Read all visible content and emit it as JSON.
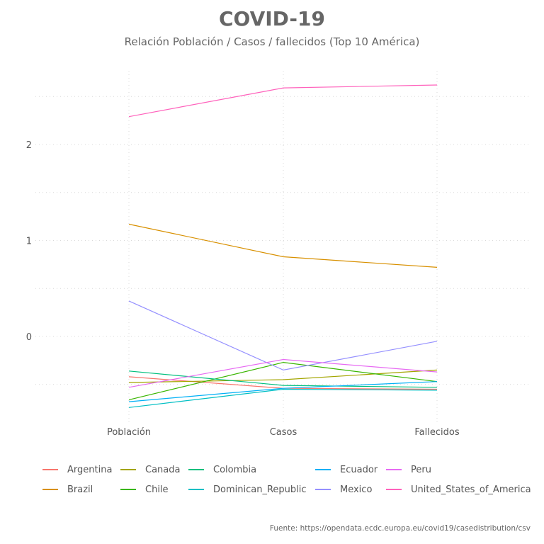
{
  "title": "COVID-19",
  "subtitle": "Relación Población / Casos / fallecidos (Top 10 América)",
  "caption": "Fuente: https://opendata.ecdc.europa.eu/covid19/casedistribution/csv",
  "chart_data": {
    "type": "line",
    "categories": [
      "Población",
      "Casos",
      "Fallecidos"
    ],
    "y_ticks": [
      0,
      1,
      2
    ],
    "ylim": [
      -0.85,
      2.75
    ],
    "grid": true,
    "legend_position": "bottom",
    "series": [
      {
        "name": "Argentina",
        "color": "#F8766D",
        "values": [
          -0.42,
          -0.54,
          -0.55
        ]
      },
      {
        "name": "Brazil",
        "color": "#D89000",
        "values": [
          1.17,
          0.83,
          0.72
        ]
      },
      {
        "name": "Canada",
        "color": "#A3A500",
        "values": [
          -0.48,
          -0.45,
          -0.35
        ]
      },
      {
        "name": "Chile",
        "color": "#39B600",
        "values": [
          -0.66,
          -0.27,
          -0.47
        ]
      },
      {
        "name": "Colombia",
        "color": "#00BF7D",
        "values": [
          -0.36,
          -0.51,
          -0.53
        ]
      },
      {
        "name": "Dominican_Republic",
        "color": "#00BFC4",
        "values": [
          -0.74,
          -0.55,
          -0.56
        ]
      },
      {
        "name": "Ecuador",
        "color": "#00B0F6",
        "values": [
          -0.68,
          -0.54,
          -0.47
        ]
      },
      {
        "name": "Mexico",
        "color": "#9590FF",
        "values": [
          0.37,
          -0.35,
          -0.05
        ]
      },
      {
        "name": "Peru",
        "color": "#E76BF3",
        "values": [
          -0.53,
          -0.24,
          -0.37
        ]
      },
      {
        "name": "United_States_of_America",
        "color": "#FF62BC",
        "values": [
          2.29,
          2.59,
          2.62
        ]
      }
    ]
  }
}
